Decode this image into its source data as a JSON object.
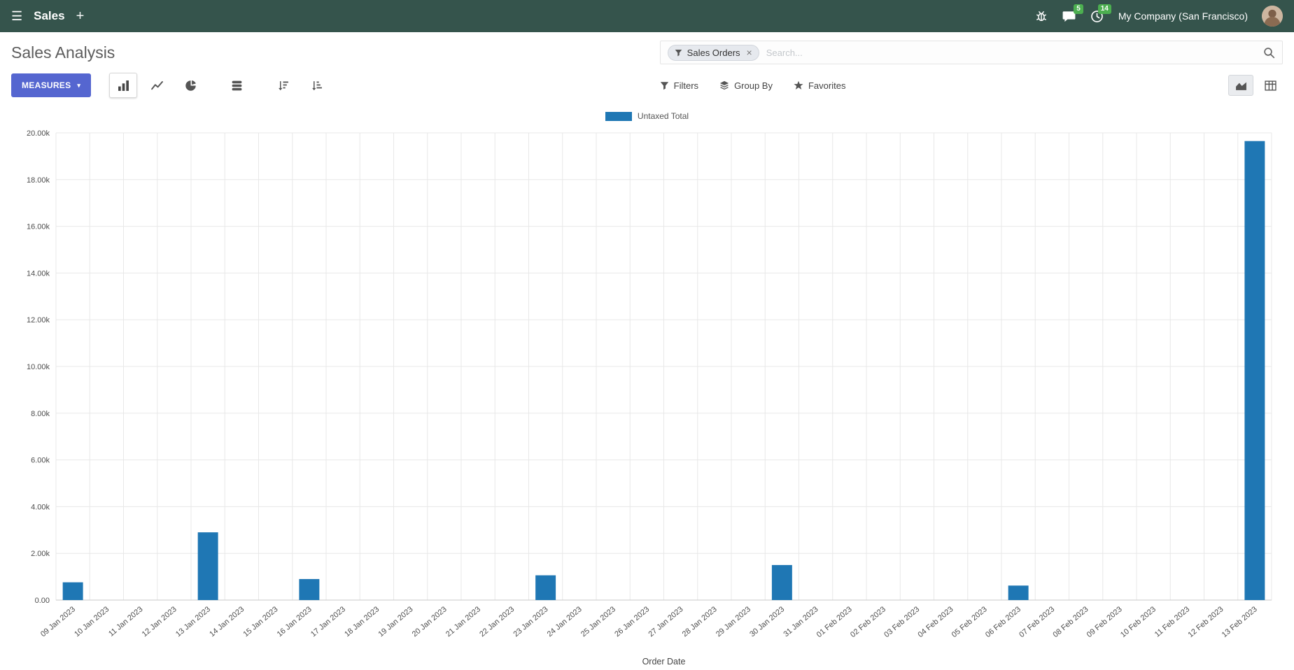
{
  "icons": {
    "hamburger": "☰",
    "plus": "+",
    "caret_down": "▾",
    "close": "×"
  },
  "colors": {
    "navbar": "#35544c",
    "primary_button": "#5566d0",
    "bar": "#1f77b4",
    "badge": "#4caf50"
  },
  "navbar": {
    "app_name": "Sales",
    "company": "My Company (San Francisco)",
    "messages_badge": "5",
    "activities_badge": "14"
  },
  "control_panel": {
    "title": "Sales Analysis",
    "measures_label": "MEASURES",
    "search": {
      "facet_label": "Sales Orders",
      "placeholder": "Search..."
    },
    "buttons": {
      "filters": "Filters",
      "group_by": "Group By",
      "favorites": "Favorites"
    }
  },
  "chart_data": {
    "type": "bar",
    "title": "",
    "xlabel": "Order Date",
    "ylabel": "",
    "ylim": [
      0,
      20000
    ],
    "ytick_step": 2000,
    "ytick_labels": [
      "0.00",
      "2.00k",
      "4.00k",
      "6.00k",
      "8.00k",
      "10.00k",
      "12.00k",
      "14.00k",
      "16.00k",
      "18.00k",
      "20.00k"
    ],
    "grid": true,
    "legend_position": "top-center",
    "bar_color": "#1f77b4",
    "categories": [
      "09 Jan 2023",
      "10 Jan 2023",
      "11 Jan 2023",
      "12 Jan 2023",
      "13 Jan 2023",
      "14 Jan 2023",
      "15 Jan 2023",
      "16 Jan 2023",
      "17 Jan 2023",
      "18 Jan 2023",
      "19 Jan 2023",
      "20 Jan 2023",
      "21 Jan 2023",
      "22 Jan 2023",
      "23 Jan 2023",
      "24 Jan 2023",
      "25 Jan 2023",
      "26 Jan 2023",
      "27 Jan 2023",
      "28 Jan 2023",
      "29 Jan 2023",
      "30 Jan 2023",
      "31 Jan 2023",
      "01 Feb 2023",
      "02 Feb 2023",
      "03 Feb 2023",
      "04 Feb 2023",
      "05 Feb 2023",
      "06 Feb 2023",
      "07 Feb 2023",
      "08 Feb 2023",
      "09 Feb 2023",
      "10 Feb 2023",
      "11 Feb 2023",
      "12 Feb 2023",
      "13 Feb 2023"
    ],
    "series": [
      {
        "name": "Untaxed Total",
        "values": [
          760,
          0,
          0,
          0,
          2900,
          0,
          0,
          900,
          0,
          0,
          0,
          0,
          0,
          0,
          1060,
          0,
          0,
          0,
          0,
          0,
          0,
          1500,
          0,
          0,
          0,
          0,
          0,
          0,
          620,
          0,
          0,
          0,
          0,
          0,
          0,
          19650
        ]
      }
    ]
  }
}
